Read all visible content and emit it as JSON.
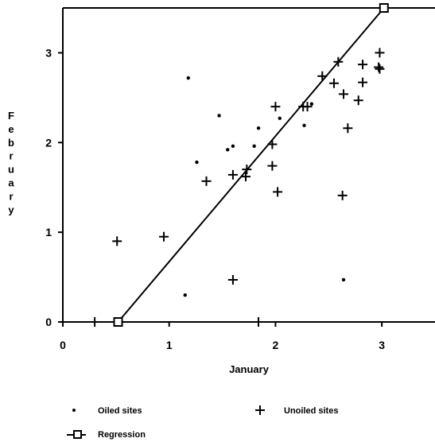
{
  "chart_data": {
    "type": "scatter",
    "xlabel": "January",
    "ylabel": "February",
    "xlim": [
      0,
      3.5
    ],
    "ylim": [
      0,
      3.5
    ],
    "x_ticks": [
      "0",
      "1",
      "2",
      "3"
    ],
    "y_ticks": [
      "0",
      "1",
      "2",
      "3"
    ],
    "grid": false,
    "legend_position": "bottom",
    "series": [
      {
        "name": "Oiled sites",
        "marker": "dot",
        "points": [
          [
            1.18,
            2.72
          ],
          [
            1.47,
            2.3
          ],
          [
            1.26,
            1.78
          ],
          [
            1.55,
            1.92
          ],
          [
            1.6,
            1.96
          ],
          [
            1.84,
            2.16
          ],
          [
            1.8,
            1.96
          ],
          [
            2.04,
            2.27
          ],
          [
            2.27,
            2.19
          ],
          [
            2.34,
            2.43
          ],
          [
            1.15,
            0.3
          ],
          [
            2.64,
            0.47
          ]
        ]
      },
      {
        "name": "Unoiled sites",
        "marker": "plus",
        "points": [
          [
            0.3,
            0.0
          ],
          [
            0.51,
            0.9
          ],
          [
            0.95,
            0.95
          ],
          [
            1.35,
            1.57
          ],
          [
            1.6,
            1.64
          ],
          [
            1.72,
            1.62
          ],
          [
            1.73,
            1.7
          ],
          [
            1.97,
            1.98
          ],
          [
            1.97,
            1.74
          ],
          [
            2.0,
            2.4
          ],
          [
            2.02,
            1.45
          ],
          [
            1.6,
            0.47
          ],
          [
            1.84,
            0.0
          ],
          [
            2.26,
            2.4
          ],
          [
            2.3,
            2.4
          ],
          [
            2.44,
            2.74
          ],
          [
            2.55,
            2.66
          ],
          [
            2.59,
            2.9
          ],
          [
            2.64,
            2.54
          ],
          [
            2.68,
            2.16
          ],
          [
            2.63,
            1.41
          ],
          [
            2.78,
            2.47
          ],
          [
            2.82,
            2.67
          ],
          [
            2.82,
            2.87
          ],
          [
            2.97,
            2.84
          ],
          [
            2.98,
            2.82
          ],
          [
            2.98,
            3.0
          ]
        ]
      },
      {
        "name": "Regression",
        "marker": "line-square",
        "points": [
          [
            0.52,
            0.0
          ],
          [
            3.02,
            3.5
          ]
        ]
      }
    ]
  }
}
